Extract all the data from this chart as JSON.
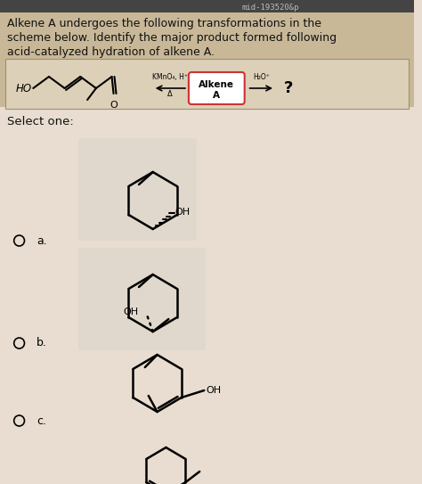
{
  "bg_color": "#e8ddd0",
  "header_bg": "#c8b898",
  "header_text_lines": [
    "Alkene A undergoes the following transformations in the",
    "scheme below. Identify the major product formed following",
    "acid-catalyzed hydration of alkene A."
  ],
  "select_one_text": "Select one:",
  "options": [
    "a.",
    "b.",
    "c."
  ],
  "text_color": "#111111",
  "scheme_box_color": "#ddd0b8",
  "figsize": [
    4.74,
    5.43
  ],
  "dpi": 100
}
